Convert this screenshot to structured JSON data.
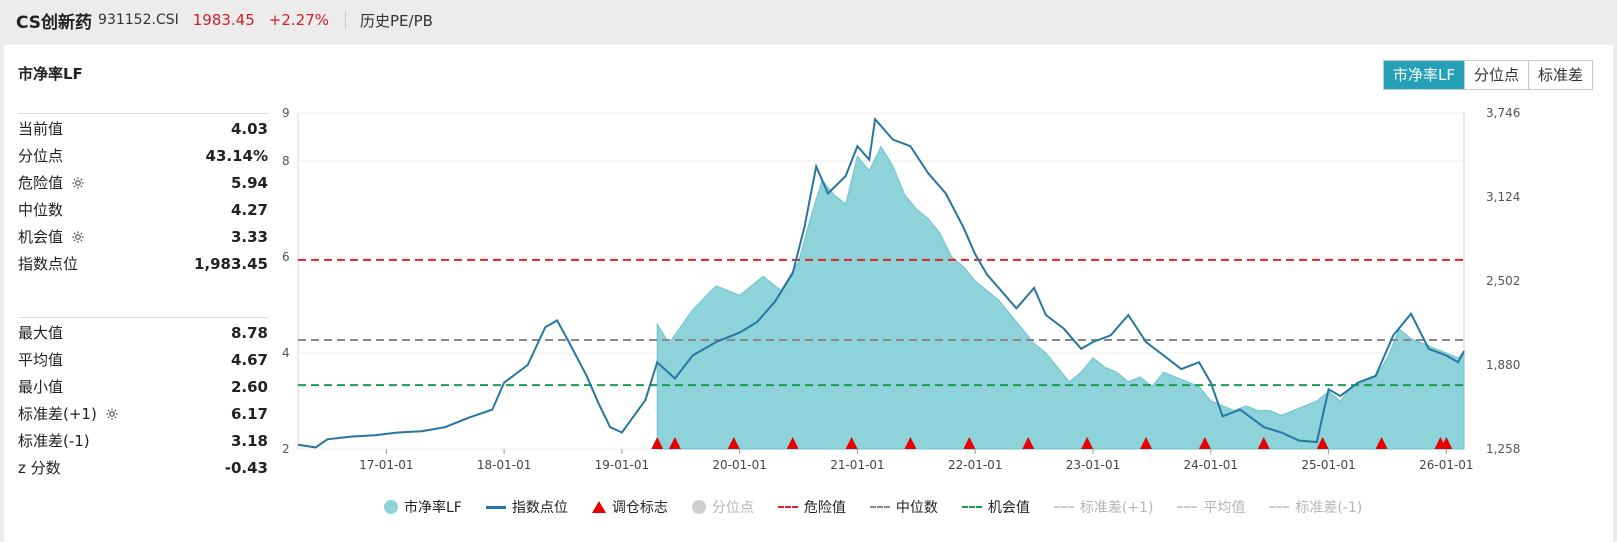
{
  "header": {
    "name": "CS创新药",
    "code": "931152.CSI",
    "price": "1983.45",
    "change": "+2.27%",
    "subtitle": "历史PE/PB"
  },
  "panel": {
    "title": "市净率LF",
    "tabs": [
      "市净率LF",
      "分位点",
      "标准差"
    ],
    "active_tab": "市净率LF"
  },
  "stats_top": [
    {
      "label": "当前值",
      "value": "4.03",
      "gear": false
    },
    {
      "label": "分位点",
      "value": "43.14%",
      "gear": false
    },
    {
      "label": "危险值",
      "value": "5.94",
      "gear": true
    },
    {
      "label": "中位数",
      "value": "4.27",
      "gear": false
    },
    {
      "label": "机会值",
      "value": "3.33",
      "gear": true
    },
    {
      "label": "指数点位",
      "value": "1,983.45",
      "gear": false
    }
  ],
  "stats_bottom": [
    {
      "label": "最大值",
      "value": "8.78",
      "gear": false
    },
    {
      "label": "平均值",
      "value": "4.67",
      "gear": false
    },
    {
      "label": "最小值",
      "value": "2.60",
      "gear": false
    },
    {
      "label": "标准差(+1)",
      "value": "6.17",
      "gear": true
    },
    {
      "label": "标准差(-1)",
      "value": "3.18",
      "gear": false
    },
    {
      "label": "z 分数",
      "value": "-0.43",
      "gear": false
    }
  ],
  "colors": {
    "area": "#8fd3da",
    "area_edge": "#6ec3cc",
    "index_line": "#2775a3",
    "danger": "#d9262c",
    "median": "#888888",
    "opportunity": "#1e9a55",
    "marker": "#e60000",
    "accent": "#24a0b8"
  },
  "legend": [
    {
      "label": "市净率LF",
      "type": "dot",
      "color": "#8fd3da",
      "muted": false
    },
    {
      "label": "指数点位",
      "type": "line",
      "color": "#2775a3",
      "muted": false
    },
    {
      "label": "调仓标志",
      "type": "tri",
      "color": "#e60000",
      "muted": false
    },
    {
      "label": "分位点",
      "type": "dot",
      "color": "#cfcfcf",
      "muted": true
    },
    {
      "label": "危险值",
      "type": "dash",
      "color": "#d9262c",
      "muted": false
    },
    {
      "label": "中位数",
      "type": "dash",
      "color": "#888888",
      "muted": false
    },
    {
      "label": "机会值",
      "type": "dash",
      "color": "#1e9a55",
      "muted": false
    },
    {
      "label": "标准差(+1)",
      "type": "dash",
      "color": "#cccccc",
      "muted": true
    },
    {
      "label": "平均值",
      "type": "dash",
      "color": "#cccccc",
      "muted": true
    },
    {
      "label": "标准差(-1)",
      "type": "dash",
      "color": "#cccccc",
      "muted": true
    }
  ],
  "chart_data": {
    "type": "area",
    "x_start": 2016.25,
    "x_end": 2026.15,
    "xticks": [
      {
        "label": "17-01-01",
        "x": 2017.0
      },
      {
        "label": "18-01-01",
        "x": 2018.0
      },
      {
        "label": "19-01-01",
        "x": 2019.0
      },
      {
        "label": "20-01-01",
        "x": 2020.0
      },
      {
        "label": "21-01-01",
        "x": 2021.0
      },
      {
        "label": "22-01-01",
        "x": 2022.0
      },
      {
        "label": "23-01-01",
        "x": 2023.0
      },
      {
        "label": "24-01-01",
        "x": 2024.0
      },
      {
        "label": "25-01-01",
        "x": 2025.0
      },
      {
        "label": "26-01-01",
        "x": 2026.0
      }
    ],
    "left_axis": {
      "min": 2,
      "max": 9,
      "ticks": [
        "2",
        "4",
        "6",
        "8",
        "9"
      ],
      "tick_values": [
        2,
        4,
        6,
        8,
        9
      ]
    },
    "right_axis": {
      "min": 1258,
      "max": 3746,
      "ticks": [
        "1,258",
        "1,880",
        "2,502",
        "3,124",
        "3,746"
      ],
      "tick_values": [
        1258,
        1880,
        2502,
        3124,
        3746
      ]
    },
    "reference_lines": {
      "danger": 5.94,
      "median": 4.27,
      "opportunity": 3.33
    },
    "pb_series": {
      "x": [
        2019.3,
        2019.4,
        2019.6,
        2019.8,
        2020.0,
        2020.2,
        2020.35,
        2020.5,
        2020.6,
        2020.7,
        2020.8,
        2020.9,
        2021.0,
        2021.1,
        2021.2,
        2021.3,
        2021.4,
        2021.5,
        2021.6,
        2021.7,
        2021.8,
        2021.9,
        2022.0,
        2022.1,
        2022.2,
        2022.3,
        2022.4,
        2022.5,
        2022.6,
        2022.7,
        2022.8,
        2022.9,
        2023.0,
        2023.1,
        2023.2,
        2023.3,
        2023.4,
        2023.5,
        2023.6,
        2023.7,
        2023.8,
        2023.9,
        2024.0,
        2024.1,
        2024.2,
        2024.3,
        2024.4,
        2024.5,
        2024.6,
        2024.7,
        2024.8,
        2024.9,
        2025.0,
        2025.1,
        2025.2,
        2025.3,
        2025.4,
        2025.5,
        2025.6,
        2025.7,
        2025.8,
        2025.9,
        2026.0,
        2026.1,
        2026.15
      ],
      "y": [
        4.6,
        4.2,
        4.9,
        5.4,
        5.2,
        5.6,
        5.3,
        5.9,
        6.8,
        7.6,
        7.3,
        7.1,
        8.1,
        7.8,
        8.3,
        7.9,
        7.3,
        7.0,
        6.8,
        6.5,
        6.0,
        5.8,
        5.5,
        5.3,
        5.1,
        4.8,
        4.5,
        4.2,
        4.0,
        3.7,
        3.4,
        3.6,
        3.9,
        3.7,
        3.6,
        3.4,
        3.5,
        3.3,
        3.6,
        3.5,
        3.4,
        3.3,
        3.0,
        2.9,
        2.8,
        2.9,
        2.8,
        2.8,
        2.7,
        2.8,
        2.9,
        3.0,
        3.2,
        3.0,
        3.3,
        3.4,
        3.5,
        3.9,
        4.5,
        4.3,
        4.2,
        4.1,
        4.0,
        3.9,
        4.03
      ]
    },
    "index_series": {
      "x": [
        2016.25,
        2016.4,
        2016.5,
        2016.7,
        2016.9,
        2017.1,
        2017.3,
        2017.5,
        2017.7,
        2017.9,
        2018.0,
        2018.2,
        2018.35,
        2018.45,
        2018.55,
        2018.7,
        2018.8,
        2018.9,
        2019.0,
        2019.2,
        2019.3,
        2019.45,
        2019.6,
        2019.8,
        2020.0,
        2020.15,
        2020.3,
        2020.45,
        2020.55,
        2020.65,
        2020.75,
        2020.9,
        2021.0,
        2021.1,
        2021.15,
        2021.3,
        2021.45,
        2021.6,
        2021.75,
        2021.9,
        2022.0,
        2022.1,
        2022.2,
        2022.35,
        2022.5,
        2022.6,
        2022.75,
        2022.9,
        2023.0,
        2023.15,
        2023.3,
        2023.45,
        2023.6,
        2023.75,
        2023.9,
        2024.0,
        2024.1,
        2024.25,
        2024.45,
        2024.6,
        2024.75,
        2024.9,
        2025.0,
        2025.1,
        2025.25,
        2025.4,
        2025.55,
        2025.7,
        2025.85,
        2026.0,
        2026.1,
        2026.15
      ],
      "y": [
        1290,
        1270,
        1330,
        1350,
        1360,
        1380,
        1390,
        1420,
        1490,
        1550,
        1750,
        1880,
        2160,
        2210,
        2050,
        1800,
        1600,
        1420,
        1380,
        1620,
        1900,
        1780,
        1950,
        2050,
        2120,
        2200,
        2350,
        2560,
        2900,
        3350,
        3150,
        3280,
        3500,
        3400,
        3700,
        3550,
        3500,
        3300,
        3150,
        2900,
        2700,
        2550,
        2450,
        2300,
        2450,
        2250,
        2150,
        2000,
        2050,
        2100,
        2250,
        2050,
        1950,
        1850,
        1900,
        1750,
        1500,
        1550,
        1420,
        1380,
        1320,
        1310,
        1700,
        1650,
        1750,
        1800,
        2100,
        2260,
        2000,
        1950,
        1900,
        1983
      ]
    },
    "rebalance_markers": [
      2019.3,
      2019.45,
      2019.95,
      2020.45,
      2020.95,
      2021.45,
      2021.95,
      2022.45,
      2022.95,
      2023.45,
      2023.95,
      2024.45,
      2024.95,
      2025.45,
      2025.95,
      2026.0
    ]
  }
}
